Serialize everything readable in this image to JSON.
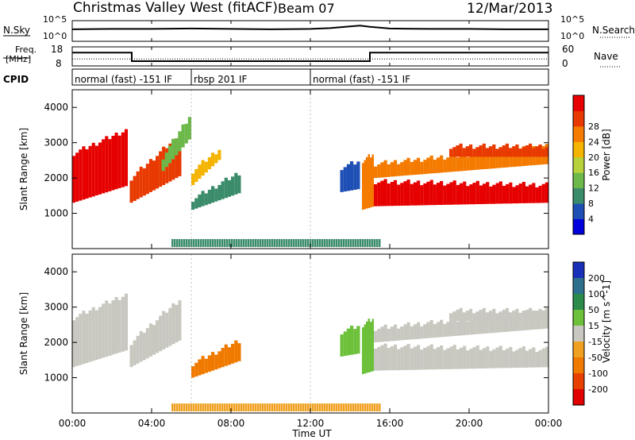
{
  "header": {
    "station": "Christmas Valley West (fitACF)",
    "beam": "Beam 07",
    "date": "12/Mar/2013"
  },
  "noise_panel": {
    "left_label": "N.Sky",
    "right_label": "N.Search",
    "left_ticks": [
      "10^5",
      "10^0"
    ],
    "right_ticks": [
      "10^5",
      "10^0"
    ]
  },
  "freq_panel": {
    "left_label_line1": "Freq.",
    "left_label_line2": "[MHz]",
    "right_label": "Nave",
    "left_ticks": [
      "18",
      "8"
    ],
    "right_ticks": [
      "60",
      "0"
    ],
    "freq_mhz": [
      {
        "t": 0,
        "v": 15
      },
      {
        "t": 3,
        "v": 10.5
      },
      {
        "t": 15,
        "v": 15
      },
      {
        "t": 24,
        "v": 15
      }
    ],
    "nave": [
      {
        "t": 0,
        "v": 22
      },
      {
        "t": 24,
        "v": 22
      }
    ]
  },
  "cpid_panel": {
    "label": "CPID",
    "segments": [
      {
        "t_start": 0,
        "t_end": 6,
        "label": "normal (fast) -151 IF"
      },
      {
        "t_start": 6,
        "t_end": 12,
        "label": "rbsp 201 IF"
      },
      {
        "t_start": 12,
        "t_end": 24,
        "label": "normal (fast) -151 IF"
      }
    ]
  },
  "x_axis": {
    "label": "Time UT",
    "ticks": [
      "00:00",
      "04:00",
      "08:00",
      "12:00",
      "16:00",
      "20:00",
      "00:00"
    ]
  },
  "power_panel": {
    "ylabel": "Slant Range [km]",
    "yticks": [
      "1000",
      "2000",
      "3000",
      "4000"
    ],
    "colorbar_label": "Power [dB]",
    "colorbar_ticks": [
      "4",
      "8",
      "12",
      "16",
      "20",
      "24",
      "28"
    ],
    "colors": [
      "#0000dd",
      "#1e4fb4",
      "#3b8c6a",
      "#6cb84a",
      "#b8d23c",
      "#f4b400",
      "#f47a00",
      "#e83a00",
      "#e60000"
    ]
  },
  "velocity_panel": {
    "ylabel": "Slant Range [km]",
    "yticks": [
      "1000",
      "2000",
      "3000",
      "4000"
    ],
    "colorbar_label": "Velocity [m s^-1]",
    "colorbar_ticks": [
      "200",
      "100",
      "50",
      "15",
      "-15",
      "-50",
      "-100",
      "-200"
    ],
    "colors": [
      "#1a2fb8",
      "#2f6f8e",
      "#2c8a4a",
      "#6cc03a",
      "#c8c8c0",
      "#f0a020",
      "#f07a00",
      "#e84000",
      "#e00000"
    ]
  },
  "chart_data": [
    {
      "type": "line",
      "title": "N.Sky / N.Search",
      "x_range_hours": [
        0,
        24
      ],
      "note_series": [
        {
          "name": "N.Sky",
          "x": [
            0,
            2,
            4,
            6,
            8,
            10,
            12,
            13,
            14,
            14.5,
            15,
            16,
            18,
            20,
            22,
            24
          ],
          "y": [
            2.9,
            3.0,
            3.0,
            3.1,
            3.0,
            2.9,
            3.0,
            3.2,
            3.6,
            3.8,
            3.5,
            3.1,
            3.0,
            3.0,
            2.9,
            2.9
          ]
        }
      ]
    },
    {
      "type": "line",
      "title": "Freq / Nave",
      "x_range_hours": [
        0,
        24
      ],
      "series": [
        {
          "name": "Freq.",
          "x": [
            0,
            3,
            3,
            15,
            15,
            24
          ],
          "y": [
            15,
            15,
            10.5,
            10.5,
            15,
            15
          ]
        },
        {
          "name": "Nave",
          "x": [
            0,
            24
          ],
          "y": [
            22,
            22
          ]
        }
      ]
    },
    {
      "type": "heatmap",
      "title": "Power [dB]",
      "x_range_hours": [
        0,
        24
      ],
      "ylim": [
        0,
        4500
      ],
      "bands": [
        {
          "t_start": 0.0,
          "t_end": 2.8,
          "r_from": [
            1300,
            2700
          ],
          "r_to": [
            1800,
            3400
          ],
          "value": 28
        },
        {
          "t_start": 2.9,
          "t_end": 5.5,
          "r_from": [
            1300,
            2000
          ],
          "r_to": [
            2100,
            3300
          ],
          "value": 26
        },
        {
          "t_start": 4.5,
          "t_end": 6.0,
          "r_from": [
            2200,
            2600
          ],
          "r_to": [
            3200,
            3900
          ],
          "value": 12
        },
        {
          "t_start": 6.0,
          "t_end": 7.5,
          "r_from": [
            1800,
            2200
          ],
          "r_to": [
            2600,
            2900
          ],
          "value": 18
        },
        {
          "t_start": 6.0,
          "t_end": 8.5,
          "r_from": [
            1100,
            1400
          ],
          "r_to": [
            1600,
            2200
          ],
          "value": 8
        },
        {
          "t_start": 13.5,
          "t_end": 14.5,
          "r_from": [
            1600,
            2300
          ],
          "r_to": [
            1700,
            2500
          ],
          "value": 6
        },
        {
          "t_start": 14.6,
          "t_end": 15.2,
          "r_from": [
            1100,
            2500
          ],
          "r_to": [
            1200,
            2700
          ],
          "value": 22
        },
        {
          "t_start": 15.2,
          "t_end": 24.0,
          "r_from": [
            1200,
            1900
          ],
          "r_to": [
            1300,
            1800
          ],
          "value": 28
        },
        {
          "t_start": 15.2,
          "t_end": 24.0,
          "r_from": [
            2000,
            2400
          ],
          "r_to": [
            2400,
            2900
          ],
          "value": 22
        },
        {
          "t_start": 19.0,
          "t_end": 24.0,
          "r_from": [
            2600,
            2900
          ],
          "r_to": [
            2600,
            2900
          ],
          "value": 26
        }
      ]
    },
    {
      "type": "heatmap",
      "title": "Velocity [m s^-1]",
      "x_range_hours": [
        0,
        24
      ],
      "ylim": [
        0,
        4500
      ],
      "bands": [
        {
          "t_start": 0.0,
          "t_end": 2.8,
          "r_from": [
            1300,
            2700
          ],
          "r_to": [
            1800,
            3400
          ],
          "value": 0
        },
        {
          "t_start": 2.9,
          "t_end": 5.5,
          "r_from": [
            1300,
            2000
          ],
          "r_to": [
            2100,
            3300
          ],
          "value": 0
        },
        {
          "t_start": 6.0,
          "t_end": 8.5,
          "r_from": [
            1000,
            1400
          ],
          "r_to": [
            1500,
            2100
          ],
          "value": -60
        },
        {
          "t_start": 13.5,
          "t_end": 14.5,
          "r_from": [
            1600,
            2300
          ],
          "r_to": [
            1700,
            2500
          ],
          "value": 30
        },
        {
          "t_start": 14.6,
          "t_end": 15.2,
          "r_from": [
            1100,
            2500
          ],
          "r_to": [
            1200,
            2700
          ],
          "value": 40
        },
        {
          "t_start": 15.2,
          "t_end": 24.0,
          "r_from": [
            1200,
            1900
          ],
          "r_to": [
            1300,
            1800
          ],
          "value": 0
        },
        {
          "t_start": 15.2,
          "t_end": 24.0,
          "r_from": [
            2000,
            2400
          ],
          "r_to": [
            2400,
            2900
          ],
          "value": 0
        },
        {
          "t_start": 19.0,
          "t_end": 24.0,
          "r_from": [
            2600,
            2900
          ],
          "r_to": [
            2600,
            2900
          ],
          "value": 0
        }
      ]
    }
  ]
}
